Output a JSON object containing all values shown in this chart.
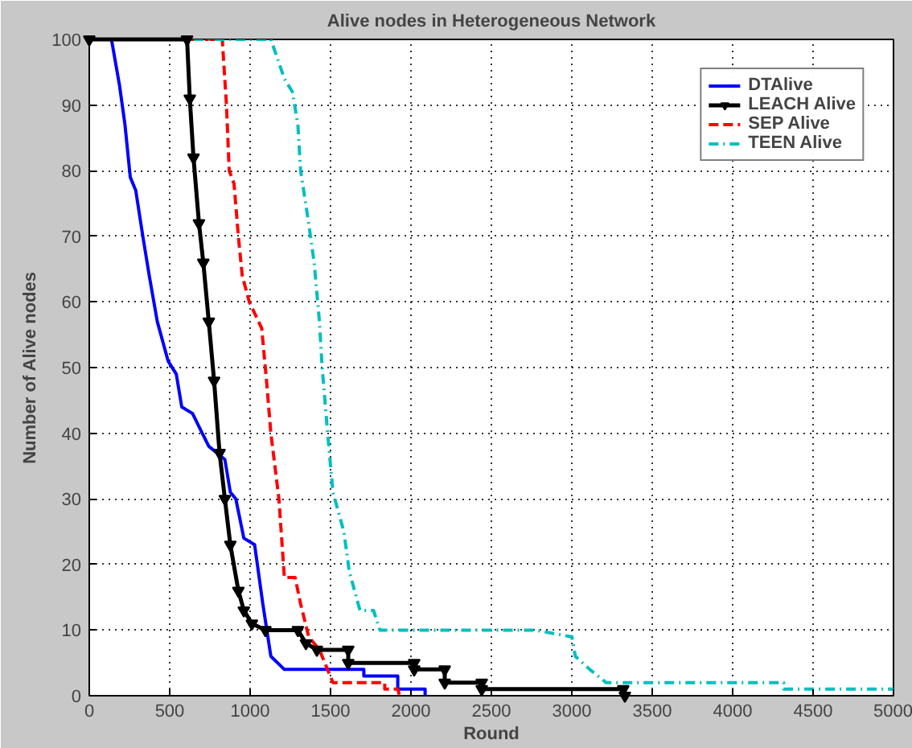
{
  "chart_data": {
    "type": "line",
    "title": "Alive nodes in Heterogeneous Network",
    "xlabel": "Round",
    "ylabel": "Number of Alive nodes",
    "xlim": [
      0,
      5000
    ],
    "ylim": [
      0,
      100
    ],
    "xticks": [
      0,
      500,
      1000,
      1500,
      2000,
      2500,
      3000,
      3500,
      4000,
      4500,
      5000
    ],
    "yticks": [
      0,
      10,
      20,
      30,
      40,
      50,
      60,
      70,
      80,
      90,
      100
    ],
    "grid": true,
    "legend": "top right",
    "series": [
      {
        "name": "DTAlive",
        "color": "#0000ff",
        "line_style": "solid",
        "marker": "none",
        "x": [
          0,
          138,
          188,
          222,
          255,
          289,
          333,
          373,
          423,
          490,
          541,
          575,
          642,
          743,
          843,
          877,
          911,
          961,
          1028,
          1079,
          1129,
          1213,
          1707,
          1707,
          1918,
          1918,
          2088,
          2088
        ],
        "values": [
          100,
          100,
          93,
          87,
          79,
          77,
          70,
          64,
          57,
          51,
          49,
          44,
          43,
          38,
          36,
          31,
          30,
          24,
          23,
          14,
          6,
          4,
          4,
          3,
          3,
          1,
          1,
          0
        ]
      },
      {
        "name": "LEACH Alive",
        "color": "#000000",
        "line_style": "solid",
        "marker": "triangle",
        "x": [
          0,
          608,
          625,
          648,
          682,
          709,
          743,
          776,
          810,
          843,
          877,
          927,
          961,
          1011,
          1095,
          1297,
          1347,
          1415,
          1610,
          1610,
          2020,
          2020,
          2210,
          2210,
          2440,
          2440,
          3320,
          3330
        ],
        "values": [
          100,
          100,
          91,
          82,
          72,
          66,
          57,
          48,
          37,
          30,
          23,
          16,
          13,
          11,
          10,
          10,
          8,
          7,
          7,
          5,
          5,
          4,
          4,
          2,
          2,
          1,
          1,
          0
        ]
      },
      {
        "name": "SEP Alive",
        "color": "#ff0000",
        "line_style": "dashed",
        "marker": "none",
        "x": [
          0,
          827,
          853,
          870,
          900,
          927,
          951,
          995,
          1072,
          1102,
          1129,
          1179,
          1213,
          1280,
          1314,
          1364,
          1431,
          1515,
          1549,
          1837,
          1837,
          1918,
          1930
        ],
        "values": [
          100,
          100,
          90,
          80,
          78,
          70,
          64,
          60,
          56,
          48,
          40,
          30,
          18,
          18,
          14,
          9,
          7,
          2,
          2,
          2,
          1,
          1,
          0
        ]
      },
      {
        "name": "TEEN Alive",
        "color": "#00bfbf",
        "line_style": "dashdot",
        "marker": "none",
        "x": [
          0,
          1129,
          1213,
          1263,
          1297,
          1314,
          1364,
          1398,
          1431,
          1448,
          1482,
          1515,
          1583,
          1616,
          1683,
          1767,
          1807,
          2771,
          2992,
          3000,
          3022,
          3112,
          3213,
          4317,
          4317,
          5000
        ],
        "values": [
          100,
          100,
          94,
          92,
          87,
          80,
          72,
          66,
          57,
          50,
          40,
          31,
          25,
          19,
          13,
          13,
          10,
          10,
          9,
          9,
          6,
          4,
          2,
          2,
          1,
          1
        ]
      }
    ]
  }
}
